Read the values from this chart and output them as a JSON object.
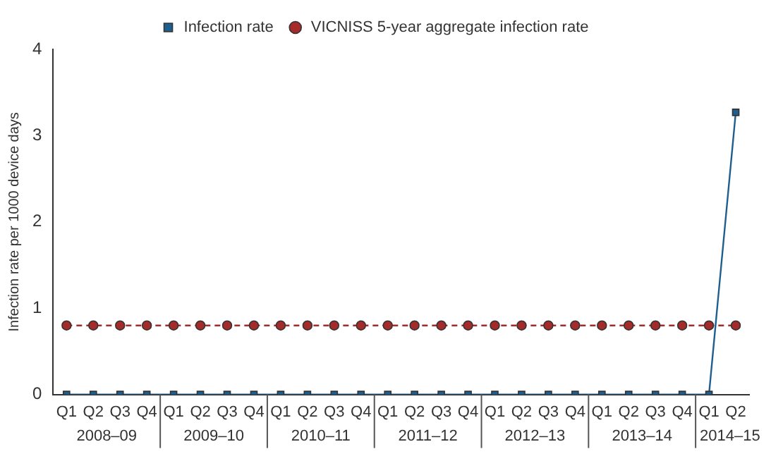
{
  "chart_data": {
    "type": "line",
    "ylabel": "Infection rate per 1000 device days",
    "categories": [
      "Q1",
      "Q2",
      "Q3",
      "Q4",
      "Q1",
      "Q2",
      "Q3",
      "Q4",
      "Q1",
      "Q2",
      "Q3",
      "Q4",
      "Q1",
      "Q2",
      "Q3",
      "Q4",
      "Q1",
      "Q2",
      "Q3",
      "Q4",
      "Q1",
      "Q2",
      "Q3",
      "Q4",
      "Q1",
      "Q2"
    ],
    "series": [
      {
        "name": "Infection rate",
        "color": "#1f5f8f",
        "marker": "square",
        "line_style": "solid",
        "values": [
          0,
          0,
          0,
          0,
          0,
          0,
          0,
          0,
          0,
          0,
          0,
          0,
          0,
          0,
          0,
          0,
          0,
          0,
          0,
          0,
          0,
          0,
          0,
          0,
          0,
          3.27
        ]
      },
      {
        "name": "VICNISS 5-year aggregate infection rate",
        "color": "#a52a2a",
        "marker": "circle",
        "line_style": "dashed",
        "values": [
          0.8,
          0.8,
          0.8,
          0.8,
          0.8,
          0.8,
          0.8,
          0.8,
          0.8,
          0.8,
          0.8,
          0.8,
          0.8,
          0.8,
          0.8,
          0.8,
          0.8,
          0.8,
          0.8,
          0.8,
          0.8,
          0.8,
          0.8,
          0.8,
          0.8,
          0.8
        ]
      }
    ],
    "annotations": [
      "2008–09",
      "2009–10",
      "2010–11",
      "2011–12",
      "2012–13",
      "2013–14",
      "2014–15"
    ],
    "ylim": [
      0,
      4
    ],
    "yticks": [
      0,
      1,
      2,
      3,
      4
    ],
    "grid": false,
    "legend": "top"
  }
}
